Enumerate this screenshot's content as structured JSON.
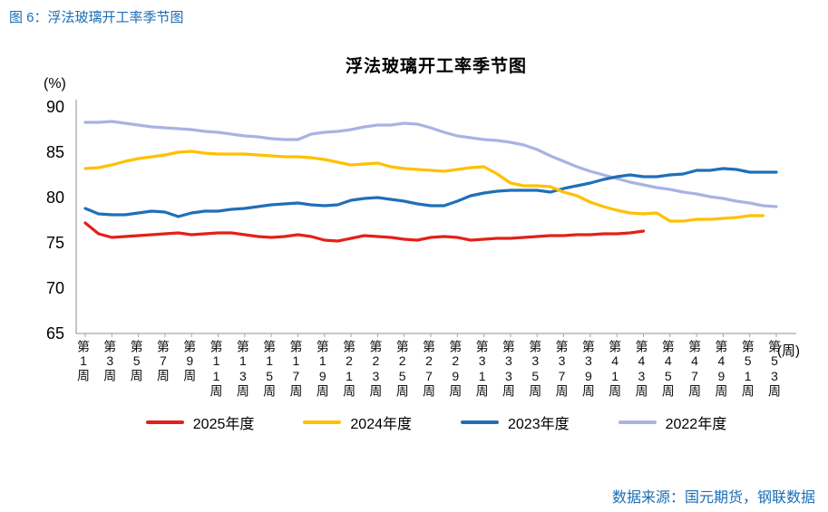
{
  "page": {
    "figure_caption": "图 6：浮法玻璃开工率季节图",
    "source_note": "数据来源：国元期货，钢联数据"
  },
  "colors": {
    "accent_text": "#1b6db6",
    "axis": "#a6a6a6"
  },
  "chart_data": {
    "type": "line",
    "title": "浮法玻璃开工率季节图",
    "y_unit_label": "(%)",
    "x_unit_label": "(周)",
    "ylim": [
      65,
      90
    ],
    "yticks": [
      90,
      85,
      80,
      75,
      70,
      65
    ],
    "x_weeks": 53,
    "grid": false,
    "legend_position": "bottom",
    "xtick_labels": [
      "第1周",
      "第3周",
      "第5周",
      "第7周",
      "第9周",
      "第11周",
      "第13周",
      "第15周",
      "第17周",
      "第19周",
      "第21周",
      "第23周",
      "第25周",
      "第27周",
      "第29周",
      "第31周",
      "第33周",
      "第35周",
      "第37周",
      "第39周",
      "第41周",
      "第43周",
      "第45周",
      "第47周",
      "第49周",
      "第51周",
      "第53周"
    ],
    "series": [
      {
        "name": "2025年度",
        "color": "#e32119",
        "start_week": 1,
        "values": [
          77.2,
          76.0,
          75.6,
          75.7,
          75.8,
          75.9,
          76.0,
          76.1,
          75.9,
          76.0,
          76.1,
          76.1,
          75.9,
          75.7,
          75.6,
          75.7,
          75.9,
          75.7,
          75.3,
          75.2,
          75.5,
          75.8,
          75.7,
          75.6,
          75.4,
          75.3,
          75.6,
          75.7,
          75.6,
          75.3,
          75.4,
          75.5,
          75.5,
          75.6,
          75.7,
          75.8,
          75.8,
          75.9,
          75.9,
          76.0,
          76.0,
          76.1,
          76.3
        ]
      },
      {
        "name": "2024年度",
        "color": "#ffc000",
        "start_week": 1,
        "values": [
          83.2,
          83.3,
          83.6,
          84.0,
          84.3,
          84.5,
          84.7,
          85.0,
          85.1,
          84.9,
          84.8,
          84.8,
          84.8,
          84.7,
          84.6,
          84.5,
          84.5,
          84.4,
          84.2,
          83.9,
          83.6,
          83.7,
          83.8,
          83.4,
          83.2,
          83.1,
          83.0,
          82.9,
          83.1,
          83.3,
          83.4,
          82.6,
          81.6,
          81.3,
          81.3,
          81.2,
          80.6,
          80.2,
          79.5,
          79.0,
          78.6,
          78.3,
          78.2,
          78.3,
          77.4,
          77.4,
          77.6,
          77.6,
          77.7,
          77.8,
          78.0,
          78.0
        ]
      },
      {
        "name": "2023年度",
        "color": "#1f6fb8",
        "start_week": 1,
        "values": [
          78.8,
          78.2,
          78.1,
          78.1,
          78.3,
          78.5,
          78.4,
          77.9,
          78.3,
          78.5,
          78.5,
          78.7,
          78.8,
          79.0,
          79.2,
          79.3,
          79.4,
          79.2,
          79.1,
          79.2,
          79.7,
          79.9,
          80.0,
          79.8,
          79.6,
          79.3,
          79.1,
          79.1,
          79.6,
          80.2,
          80.5,
          80.7,
          80.8,
          80.8,
          80.8,
          80.6,
          81.0,
          81.3,
          81.6,
          82.0,
          82.3,
          82.5,
          82.3,
          82.3,
          82.5,
          82.6,
          83.0,
          83.0,
          83.2,
          83.1,
          82.8,
          82.8,
          82.8
        ]
      },
      {
        "name": "2022年度",
        "color": "#a8b3e2",
        "start_week": 1,
        "values": [
          88.3,
          88.3,
          88.4,
          88.2,
          88.0,
          87.8,
          87.7,
          87.6,
          87.5,
          87.3,
          87.2,
          87.0,
          86.8,
          86.7,
          86.5,
          86.4,
          86.4,
          87.0,
          87.2,
          87.3,
          87.5,
          87.8,
          88.0,
          88.0,
          88.2,
          88.1,
          87.7,
          87.2,
          86.8,
          86.6,
          86.4,
          86.3,
          86.1,
          85.8,
          85.3,
          84.6,
          84.0,
          83.4,
          82.9,
          82.5,
          82.1,
          81.7,
          81.4,
          81.1,
          80.9,
          80.6,
          80.4,
          80.1,
          79.9,
          79.6,
          79.4,
          79.1,
          79.0
        ]
      }
    ]
  }
}
